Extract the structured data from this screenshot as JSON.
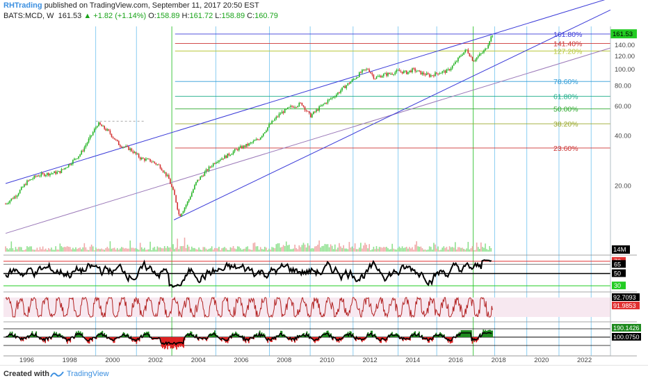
{
  "header": {
    "author": "RHTrading",
    "published_text": "published on TradingView.com, September 11, 2017 20:50 EST",
    "symbol": "BATS:MCD, W",
    "last_price": "161.53",
    "change": "▲ +1.82 (+1.14%)",
    "o_label": "O:",
    "o_value": "158.89",
    "h_label": "H:",
    "h_value": "161.72",
    "l_label": "L:",
    "l_value": "158.89",
    "c_label": "C:",
    "c_value": "160.79"
  },
  "footer": {
    "created_with": "Created with",
    "tradingview": "TradingView"
  },
  "colors": {
    "up": "#22b322",
    "down": "#d33030",
    "channel": "#3a3ad8",
    "mid_channel": "#9a78b8",
    "cycle_line": "#7ec8f0",
    "last_price_bg": "#22cc22",
    "volume_up": "#8ee08e",
    "volume_down": "#f0a8a8",
    "stoch": "#b22222"
  },
  "chart_data": [
    {
      "type": "line",
      "subtype": "candlestick",
      "title": "",
      "x_axis": {
        "range": [
          1994.9,
          2023.2
        ],
        "tick_labels": [
          "1996",
          "1998",
          "2000",
          "2002",
          "2004",
          "2006",
          "2008",
          "2010",
          "2012",
          "2014",
          "2016",
          "2018",
          "2020",
          "2022"
        ]
      },
      "y_axis": {
        "range": [
          8,
          173
        ],
        "scale": "log",
        "position": "right",
        "tick_labels": [
          "20.00",
          "40.00",
          "60.00",
          "80.00",
          "100.00",
          "120.00",
          "140.00"
        ]
      },
      "last_price_label": "161.53",
      "price_series": {
        "x": [
          1995.0,
          1995.5,
          1996.0,
          1996.5,
          1997.0,
          1997.5,
          1998.0,
          1998.5,
          1999.0,
          1999.3,
          1999.8,
          2000.3,
          2000.8,
          2001.3,
          2001.8,
          2002.2,
          2002.6,
          2002.9,
          2003.1,
          2003.5,
          2003.9,
          2004.3,
          2004.8,
          2005.3,
          2005.8,
          2006.3,
          2006.8,
          2007.3,
          2007.8,
          2008.3,
          2008.8,
          2009.2,
          2009.6,
          2010.0,
          2010.4,
          2010.8,
          2011.2,
          2011.6,
          2011.9,
          2012.2,
          2012.6,
          2013.0,
          2013.3,
          2013.7,
          2014.0,
          2014.4,
          2014.8,
          2015.2,
          2015.6,
          2015.9,
          2016.3,
          2016.5,
          2016.8,
          2017.0,
          2017.2,
          2017.4,
          2017.55,
          2017.7
        ],
        "y": [
          15.5,
          17.5,
          21,
          23,
          23.5,
          24,
          27,
          31,
          40,
          47,
          42,
          35,
          33,
          29,
          28,
          26,
          22,
          17,
          13,
          16,
          21,
          24,
          28,
          30,
          33,
          35,
          38,
          46,
          54,
          59,
          62,
          52,
          58,
          64,
          70,
          78,
          86,
          96,
          100,
          88,
          92,
          94,
          97,
          95,
          99,
          94,
          91,
          95,
          97,
          106,
          124,
          130,
          112,
          118,
          124,
          132,
          148,
          161.5
        ]
      },
      "fib_levels": [
        {
          "label": "161.80%",
          "price": 161.8,
          "color": "#3a3ad8"
        },
        {
          "label": "141.40%",
          "price": 142,
          "color": "#cc3333"
        },
        {
          "label": "127.20%",
          "price": 128,
          "color": "#b8c73a"
        },
        {
          "label": "78.60%",
          "price": 84,
          "color": "#2f9bd6"
        },
        {
          "label": "61.80%",
          "price": 68.5,
          "color": "#1fae8a"
        },
        {
          "label": "50.00%",
          "price": 57.5,
          "color": "#2ea82e"
        },
        {
          "label": "38.20%",
          "price": 46.8,
          "color": "#9aa82b"
        },
        {
          "label": "23.60%",
          "price": 33.5,
          "color": "#cc3333"
        }
      ],
      "channel": {
        "upper": [
          [
            1995.0,
            20.5
          ],
          [
            2017.7,
            161.5
          ]
        ],
        "middle": [
          [
            1995.0,
            10.3
          ],
          [
            2017.7,
            81
          ]
        ],
        "lower": [
          [
            2002.85,
            12.4
          ],
          [
            2017.7,
            103
          ]
        ]
      },
      "cycle_lines_x": [
        1999.2,
        2001.1,
        2002.75,
        2004.8,
        2007.3,
        2009.2,
        2011.2,
        2013.3,
        2015.1,
        2016.8,
        2017.8,
        2019.3,
        2020.8,
        2022.3,
        2023.2
      ],
      "highlighted_cycle_x": [
        2002.75,
        2016.8
      ]
    },
    {
      "type": "bar",
      "title": "",
      "series": [
        {
          "values_note": "weekly volume"
        }
      ],
      "axis_label": "14M"
    },
    {
      "type": "line",
      "title": "",
      "levels": [
        {
          "label": "70",
          "value": 70,
          "color": "#e03030"
        },
        {
          "label": "65",
          "value": 65,
          "color": "#777777"
        },
        {
          "label": "50",
          "value": 50,
          "color": "#000000"
        },
        {
          "label": "30",
          "value": 30,
          "color": "#22cc22"
        }
      ]
    },
    {
      "type": "line",
      "title": "",
      "value_labels": [
        "92.7093",
        "91.9853"
      ]
    },
    {
      "type": "area",
      "title": "",
      "value_labels": [
        "190.1426",
        "100.0750"
      ]
    }
  ]
}
